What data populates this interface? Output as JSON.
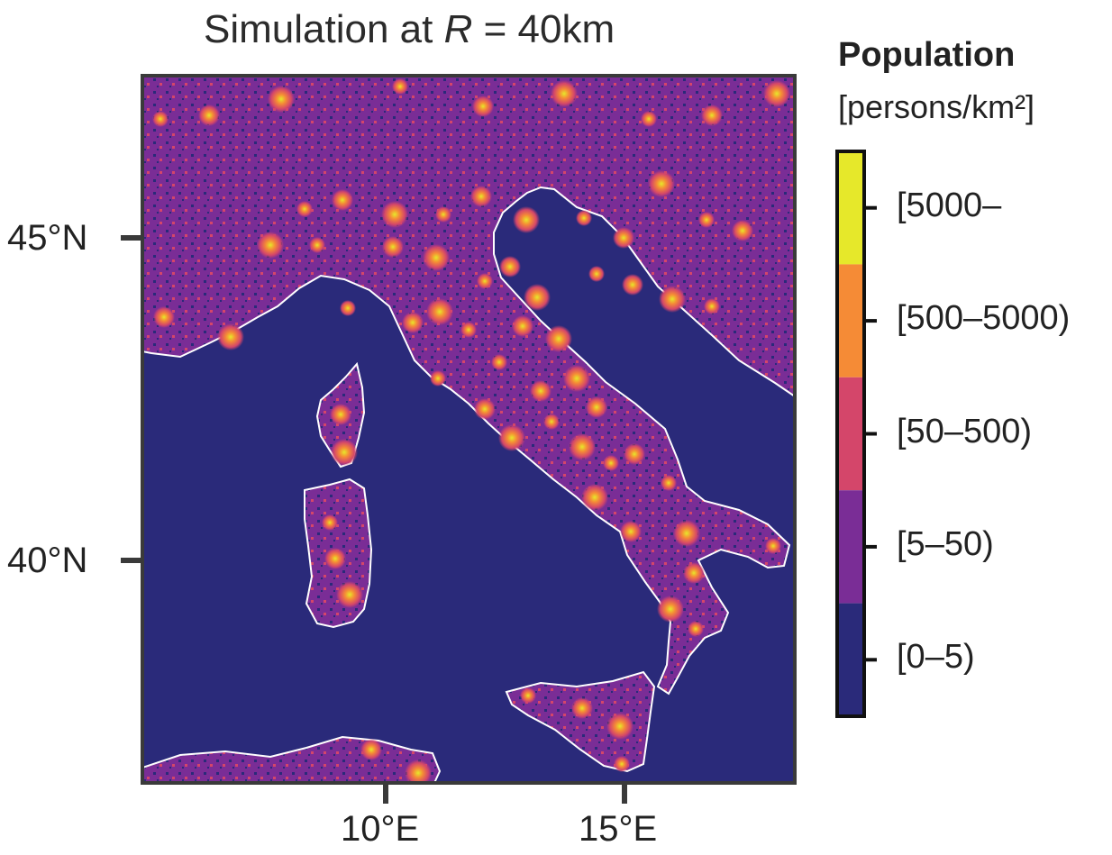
{
  "title": {
    "prefix": "Simulation at ",
    "variable": "R",
    "suffix": " = 40km"
  },
  "map": {
    "region": "Italy",
    "colors": {
      "sea": "#2a2a7a",
      "coastline": "#ffffff",
      "frame": "#3a3a3a"
    },
    "lat_ticks": [
      "45°N",
      "40°N"
    ],
    "lon_ticks": [
      "10°E",
      "15°E"
    ]
  },
  "legend": {
    "title": "Population",
    "unit": "[persons/km²]",
    "bins": [
      {
        "label": "[5000–",
        "color": "#e6e82a"
      },
      {
        "label": "[500–5000)",
        "color": "#f58b36"
      },
      {
        "label": "[50–500)",
        "color": "#d4466a"
      },
      {
        "label": "[5–50)",
        "color": "#7a2d96"
      },
      {
        "label": "[0–5)",
        "color": "#2a2a7a"
      }
    ]
  }
}
